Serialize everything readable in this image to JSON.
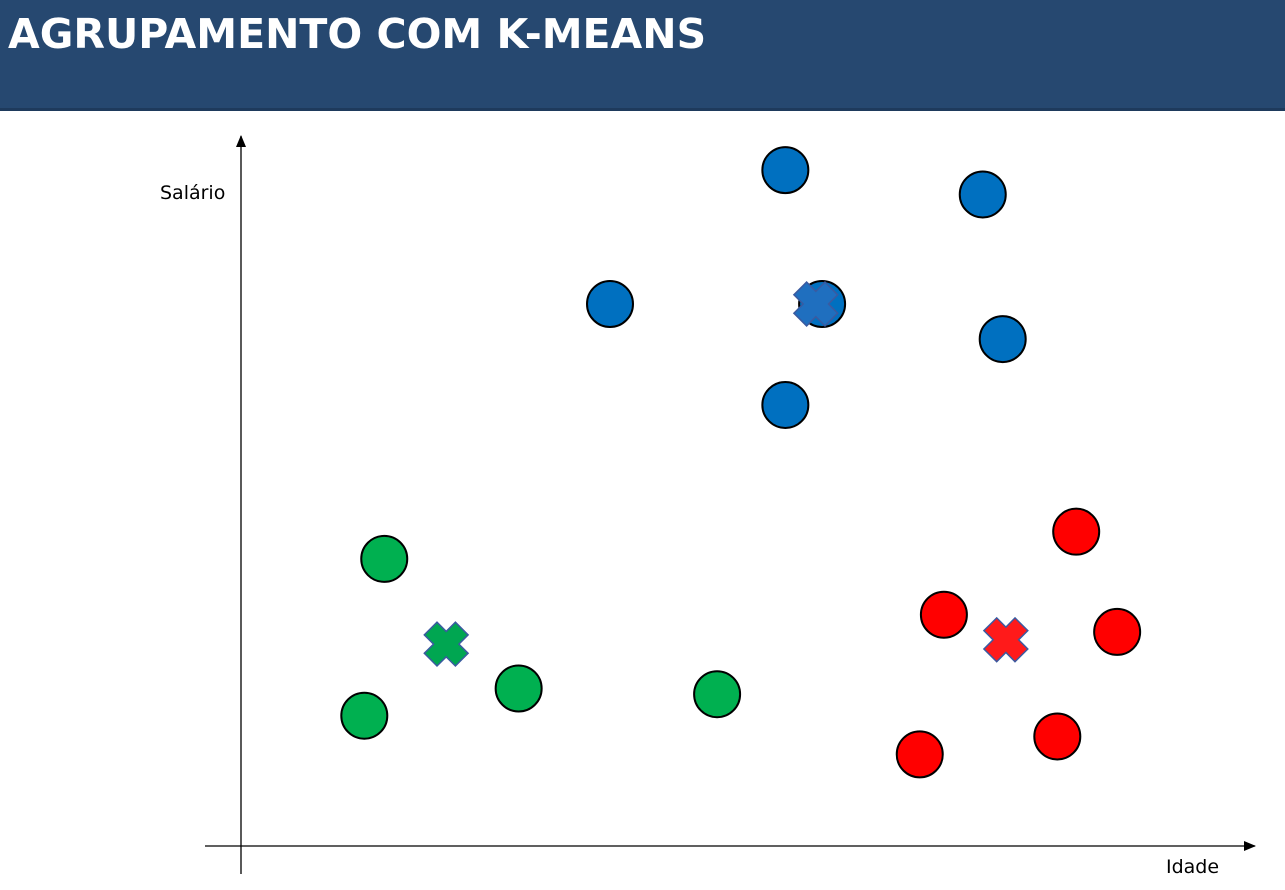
{
  "header": {
    "title": "AGRUPAMENTO COM K-MEANS"
  },
  "chart_data": {
    "type": "scatter",
    "title": "AGRUPAMENTO COM K-MEANS",
    "xlabel": "Idade",
    "ylabel": "Salário",
    "xlim": [
      0,
      100
    ],
    "ylim": [
      0,
      100
    ],
    "grid": false,
    "colors": {
      "blue": "#0070c0",
      "green": "#00b050",
      "red": "#ff0000",
      "centroid_blue": "#1f6fbf",
      "centroid_green": "#00a651",
      "centroid_red": "#ff1a1a"
    },
    "series": [
      {
        "color": "#0070c0",
        "points": [
          {
            "x": 54.7,
            "y": 94.4
          },
          {
            "x": 73.5,
            "y": 91.0
          },
          {
            "x": 38.0,
            "y": 75.7
          },
          {
            "x": 58.2,
            "y": 75.7
          },
          {
            "x": 75.4,
            "y": 70.8
          },
          {
            "x": 54.7,
            "y": 61.6
          }
        ],
        "centroid": {
          "x": 57.6,
          "y": 75.7
        }
      },
      {
        "color": "#00b050",
        "points": [
          {
            "x": 16.5,
            "y": 40.1
          },
          {
            "x": 29.3,
            "y": 22.0
          },
          {
            "x": 14.6,
            "y": 18.2
          },
          {
            "x": 48.2,
            "y": 21.2
          }
        ],
        "centroid": {
          "x": 22.4,
          "y": 28.2
        }
      },
      {
        "color": "#ff0000",
        "points": [
          {
            "x": 82.4,
            "y": 43.9
          },
          {
            "x": 69.8,
            "y": 32.3
          },
          {
            "x": 86.3,
            "y": 29.9
          },
          {
            "x": 67.5,
            "y": 12.8
          },
          {
            "x": 80.6,
            "y": 15.3
          }
        ],
        "centroid": {
          "x": 75.7,
          "y": 28.8
        }
      }
    ]
  }
}
